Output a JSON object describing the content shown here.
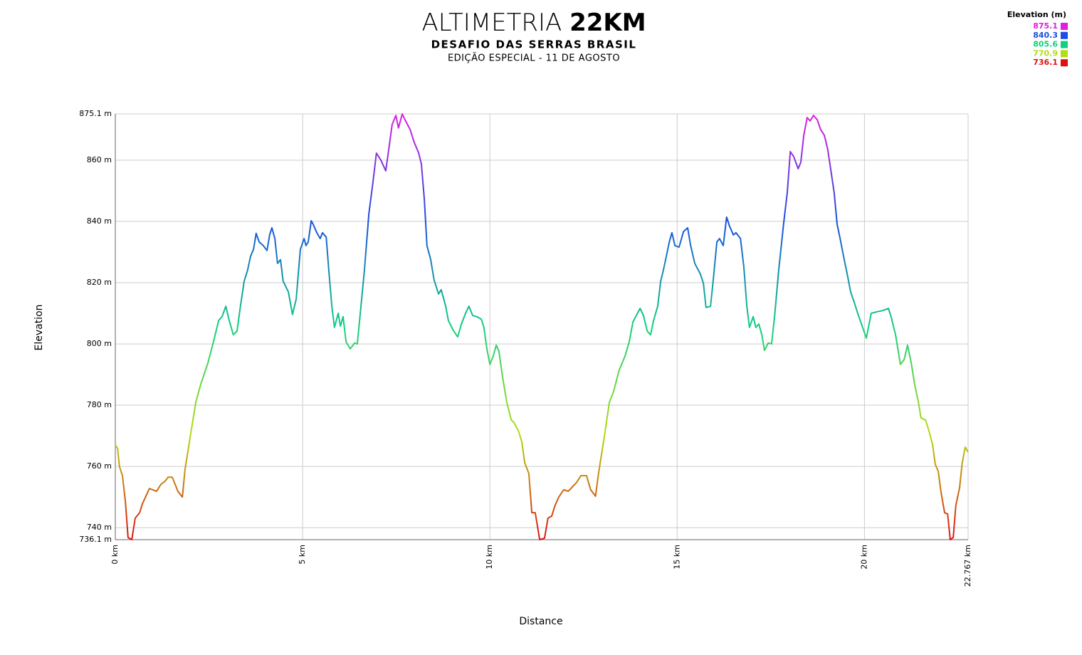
{
  "chart_data": {
    "type": "line",
    "title": "ALTIMETRIA",
    "title_emphasis": "22KM",
    "subtitle": "DESAFIO DAS SERRAS BRASIL",
    "subtitle_2": "EDIÇÃO ESPECIAL - 11 DE AGOSTO",
    "xlabel": "Distance",
    "ylabel": "Elevation",
    "xlim": [
      0,
      22.767
    ],
    "ylim": [
      736.1,
      875.1
    ],
    "xticks": [
      {
        "value": 0,
        "label": "0 km"
      },
      {
        "value": 5,
        "label": "5 km"
      },
      {
        "value": 10,
        "label": "10 km"
      },
      {
        "value": 15,
        "label": "15 km"
      },
      {
        "value": 20,
        "label": "20 km"
      },
      {
        "value": 22.767,
        "label": "22.767 km"
      }
    ],
    "yticks": [
      {
        "value": 736.1,
        "label": "736.1 m"
      },
      {
        "value": 740,
        "label": "740 m"
      },
      {
        "value": 760,
        "label": "760 m"
      },
      {
        "value": 780,
        "label": "780 m"
      },
      {
        "value": 800,
        "label": "800 m"
      },
      {
        "value": 820,
        "label": "820 m"
      },
      {
        "value": 840,
        "label": "840 m"
      },
      {
        "value": 860,
        "label": "860 m"
      },
      {
        "value": 875.1,
        "label": "875.1 m"
      }
    ],
    "grid": true,
    "legend_corner": "top-right",
    "legend": {
      "title": "Elevation (m)",
      "items": [
        {
          "value": 875.1,
          "color": "#e01ee0"
        },
        {
          "value": 840.3,
          "color": "#1a4fe0"
        },
        {
          "value": 805.6,
          "color": "#10d080"
        },
        {
          "value": 770.9,
          "color": "#b5dc10"
        },
        {
          "value": 736.1,
          "color": "#e01010"
        }
      ]
    },
    "x": [
      0.0,
      0.06,
      0.11,
      0.19,
      0.27,
      0.34,
      0.44,
      0.53,
      0.65,
      0.72,
      0.91,
      1.1,
      1.22,
      1.33,
      1.41,
      1.52,
      1.67,
      1.79,
      1.86,
      2.01,
      2.15,
      2.28,
      2.47,
      2.62,
      2.76,
      2.85,
      2.95,
      3.04,
      3.15,
      3.25,
      3.34,
      3.44,
      3.53,
      3.61,
      3.69,
      3.76,
      3.84,
      3.95,
      4.05,
      4.12,
      4.18,
      4.26,
      4.33,
      4.41,
      4.48,
      4.62,
      4.73,
      4.83,
      4.94,
      5.04,
      5.09,
      5.15,
      5.23,
      5.28,
      5.38,
      5.47,
      5.53,
      5.63,
      5.7,
      5.78,
      5.85,
      5.95,
      6.01,
      6.08,
      6.16,
      6.27,
      6.39,
      6.46,
      6.54,
      6.65,
      6.77,
      6.88,
      6.97,
      7.09,
      7.22,
      7.3,
      7.39,
      7.49,
      7.56,
      7.66,
      7.75,
      7.87,
      7.98,
      8.1,
      8.17,
      8.25,
      8.32,
      8.42,
      8.51,
      8.63,
      8.7,
      8.82,
      8.89,
      9.01,
      9.14,
      9.24,
      9.35,
      9.44,
      9.54,
      9.65,
      9.77,
      9.84,
      9.92,
      10.0,
      10.09,
      10.17,
      10.24,
      10.34,
      10.45,
      10.57,
      10.64,
      10.76,
      10.85,
      10.93,
      11.04,
      11.12,
      11.21,
      11.33,
      11.46,
      11.55,
      11.65,
      11.74,
      11.84,
      11.97,
      12.09,
      12.2,
      12.31,
      12.43,
      12.58,
      12.69,
      12.82,
      12.9,
      13.05,
      13.19,
      13.3,
      13.45,
      13.61,
      13.72,
      13.82,
      13.91,
      14.01,
      14.1,
      14.2,
      14.29,
      14.37,
      14.48,
      14.56,
      14.63,
      14.71,
      14.79,
      14.86,
      14.94,
      15.05,
      15.17,
      15.28,
      15.36,
      15.47,
      15.62,
      15.7,
      15.77,
      15.89,
      15.96,
      16.06,
      16.13,
      16.23,
      16.32,
      16.4,
      16.5,
      16.57,
      16.69,
      16.78,
      16.86,
      16.93,
      17.03,
      17.1,
      17.18,
      17.26,
      17.33,
      17.43,
      17.52,
      17.6,
      17.71,
      17.84,
      17.94,
      18.02,
      18.11,
      18.23,
      18.3,
      18.38,
      18.47,
      18.55,
      18.64,
      18.74,
      18.83,
      18.93,
      19.02,
      19.12,
      19.19,
      19.27,
      19.35,
      19.46,
      19.54,
      19.63,
      19.73,
      19.82,
      19.92,
      20.05,
      20.18,
      20.33,
      20.49,
      20.64,
      20.71,
      20.83,
      20.96,
      21.06,
      21.15,
      21.25,
      21.34,
      21.44,
      21.51,
      21.63,
      21.72,
      21.82,
      21.89,
      21.97,
      22.04,
      22.14,
      22.22,
      22.29,
      22.37,
      22.44,
      22.54,
      22.61,
      22.69,
      22.767
    ],
    "values": [
      767.0,
      765.9,
      760.0,
      757.0,
      748.4,
      736.8,
      736.1,
      743.1,
      744.9,
      747.7,
      752.8,
      751.9,
      754.2,
      755.2,
      756.5,
      756.5,
      751.9,
      750.0,
      758.9,
      770.5,
      781.0,
      786.8,
      793.7,
      800.7,
      807.7,
      808.9,
      812.3,
      807.7,
      803.0,
      804.2,
      812.3,
      820.5,
      824.0,
      828.6,
      830.9,
      836.1,
      833.3,
      832.1,
      830.5,
      835.6,
      837.9,
      834.4,
      826.3,
      827.5,
      820.5,
      817.0,
      809.6,
      814.7,
      830.9,
      834.4,
      832.1,
      833.3,
      840.2,
      839.1,
      836.3,
      834.4,
      836.3,
      834.9,
      824.0,
      812.3,
      805.4,
      810.0,
      805.8,
      808.9,
      800.7,
      798.4,
      800.3,
      800.0,
      810.0,
      824.0,
      842.6,
      853.0,
      862.3,
      860.0,
      856.5,
      863.5,
      871.6,
      874.6,
      870.5,
      875.1,
      872.8,
      870.0,
      865.8,
      862.3,
      858.8,
      847.2,
      832.1,
      827.5,
      820.9,
      816.3,
      817.7,
      812.3,
      807.7,
      804.7,
      802.3,
      806.5,
      810.0,
      812.3,
      809.3,
      808.9,
      808.1,
      805.4,
      798.4,
      793.3,
      796.1,
      799.6,
      797.7,
      789.1,
      781.0,
      775.2,
      774.4,
      771.7,
      768.2,
      761.2,
      757.7,
      744.9,
      744.9,
      736.1,
      736.6,
      743.1,
      743.8,
      747.3,
      750.0,
      752.4,
      751.9,
      753.3,
      754.7,
      757.0,
      757.0,
      752.4,
      750.3,
      757.7,
      769.3,
      781.0,
      784.4,
      791.4,
      796.1,
      800.7,
      807.2,
      809.3,
      811.6,
      809.3,
      804.2,
      803.0,
      807.7,
      812.3,
      820.5,
      824.0,
      828.6,
      833.3,
      836.3,
      832.1,
      831.6,
      836.7,
      837.9,
      832.1,
      826.3,
      822.8,
      819.8,
      811.9,
      812.3,
      820.5,
      833.3,
      834.4,
      832.1,
      841.4,
      838.4,
      835.6,
      836.3,
      834.4,
      825.1,
      812.3,
      805.4,
      808.9,
      805.4,
      806.5,
      803.0,
      797.9,
      800.3,
      800.0,
      808.9,
      824.0,
      839.1,
      849.5,
      862.8,
      861.2,
      857.2,
      859.3,
      868.1,
      873.9,
      872.8,
      874.6,
      873.2,
      870.0,
      868.1,
      863.5,
      855.3,
      849.5,
      839.1,
      834.4,
      827.5,
      822.8,
      817.0,
      813.5,
      810.0,
      806.5,
      801.9,
      810.0,
      810.5,
      810.9,
      811.6,
      808.9,
      803.0,
      793.3,
      794.9,
      799.6,
      793.7,
      786.8,
      781.0,
      775.8,
      775.2,
      771.7,
      767.0,
      760.7,
      758.4,
      751.9,
      744.9,
      744.5,
      736.1,
      736.8,
      747.3,
      753.1,
      761.2,
      766.3,
      764.7
    ]
  }
}
